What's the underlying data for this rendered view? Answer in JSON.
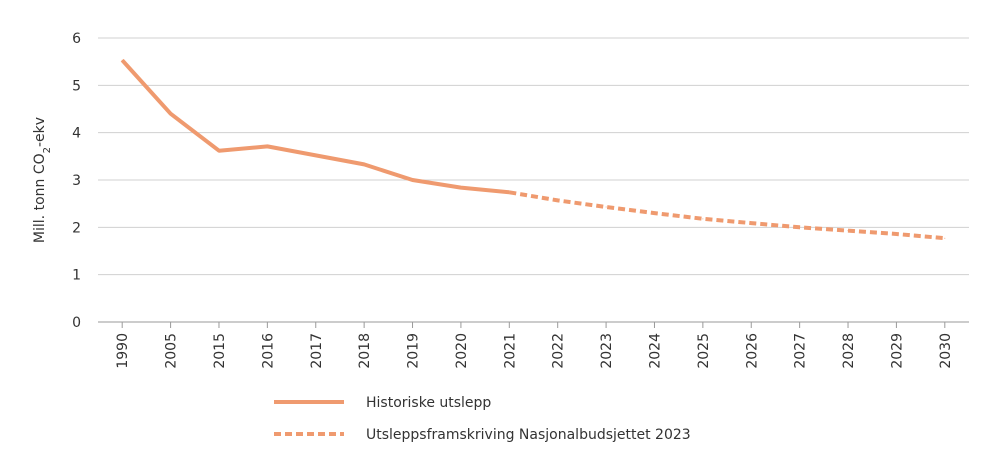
{
  "chart_data": {
    "type": "line",
    "title": "",
    "xlabel": "",
    "ylabel": "Mill. tonn CO₂-ekv",
    "ylim": [
      0,
      6
    ],
    "yticks": [
      0,
      1,
      2,
      3,
      4,
      5,
      6
    ],
    "categories": [
      "1990",
      "2005",
      "2015",
      "2016",
      "2017",
      "2018",
      "2019",
      "2020",
      "2021",
      "2022",
      "2023",
      "2024",
      "2025",
      "2026",
      "2027",
      "2028",
      "2029",
      "2030"
    ],
    "grid": true,
    "legend_position": "bottom",
    "color": "#ef9a6f",
    "series": [
      {
        "name": "Historiske utslepp",
        "style": "solid",
        "values": [
          5.53,
          4.4,
          3.62,
          3.71,
          3.52,
          3.33,
          3.0,
          2.84,
          2.74,
          null,
          null,
          null,
          null,
          null,
          null,
          null,
          null,
          null
        ]
      },
      {
        "name": "Utsleppsframskriving Nasjonalbudsjettet 2023",
        "style": "dashed",
        "values": [
          null,
          null,
          null,
          null,
          null,
          null,
          null,
          null,
          2.74,
          2.57,
          2.43,
          2.3,
          2.18,
          2.09,
          2.0,
          1.93,
          1.86,
          1.77
        ]
      }
    ]
  }
}
